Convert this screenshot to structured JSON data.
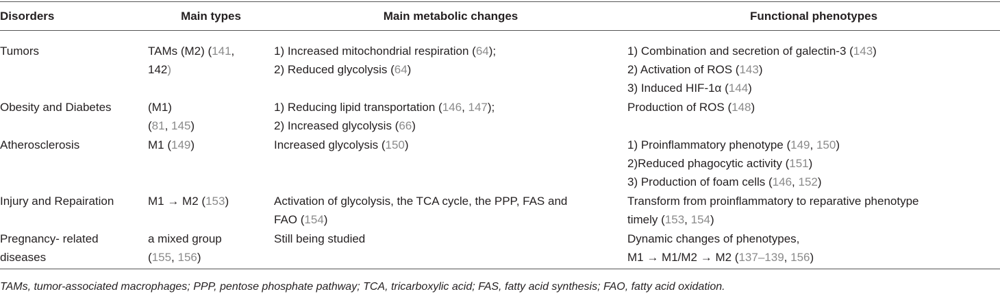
{
  "table": {
    "header": [
      "Disorders",
      "Main types",
      "Main metabolic changes",
      "Functional phenotypes"
    ],
    "rows": [
      [
        [
          [
            "Tumors"
          ]
        ],
        [
          [
            "TAMs (M2) (",
            "141",
            ", "
          ],
          [
            "142",
            ")"
          ]
        ],
        [
          [
            "1) Increased mitochondrial respiration (",
            "64",
            ");"
          ],
          [
            "2) Reduced glycolysis (",
            "64",
            ")"
          ]
        ],
        [
          [
            "1) Combination and secretion of galectin-3 (",
            "143",
            ")"
          ],
          [
            "2) Activation of ROS (",
            "143",
            ")"
          ],
          [
            "3) Induced HIF-1α (",
            "144",
            ")"
          ]
        ]
      ],
      [
        [
          [
            "Obesity and Diabetes"
          ]
        ],
        [
          [
            "(M1)"
          ],
          [
            "(",
            "81",
            ", ",
            "145",
            ")"
          ]
        ],
        [
          [
            "1) Reducing lipid transportation (",
            "146",
            ", ",
            "147",
            ");"
          ],
          [
            "2) Increased glycolysis (",
            "66",
            ")"
          ]
        ],
        [
          [
            "Production of ROS (",
            "148",
            ")"
          ]
        ]
      ],
      [
        [
          [
            "Atherosclerosis"
          ]
        ],
        [
          [
            "M1 (",
            "149",
            ")"
          ]
        ],
        [
          [
            "Increased glycolysis (",
            "150",
            ")"
          ]
        ],
        [
          [
            "1) Proinflammatory phenotype (",
            "149",
            ", ",
            "150",
            ")"
          ],
          [
            "2)Reduced phagocytic activity (",
            "151",
            ")"
          ],
          [
            "3) Production of foam cells (",
            "146",
            ", ",
            "152",
            ")"
          ]
        ]
      ],
      [
        [
          [
            "Injury and Repairation"
          ]
        ],
        [
          [
            "M1 → M2 (",
            "153",
            ")"
          ]
        ],
        [
          [
            "Activation of glycolysis, the TCA cycle, the PPP, FAS and"
          ],
          [
            "FAO (",
            "154",
            ")"
          ]
        ],
        [
          [
            "Transform from proinflammatory to reparative phenotype"
          ],
          [
            "timely (",
            "153",
            ", ",
            "154",
            ")"
          ]
        ]
      ],
      [
        [
          [
            "Pregnancy- related"
          ],
          [
            "diseases"
          ]
        ],
        [
          [
            "a mixed group"
          ],
          [
            "(",
            "155",
            ", ",
            "156",
            ")"
          ]
        ],
        [
          [
            "Still being studied"
          ]
        ],
        [
          [
            "Dynamic changes of phenotypes,"
          ],
          [
            "M1 → M1/M2 → M2 (",
            "137–139",
            ", ",
            "156",
            ")"
          ]
        ]
      ]
    ],
    "footnote": "TAMs, tumor-associated macrophages; PPP, pentose phosphate pathway; TCA, tricarboxylic acid; FAS, fatty acid synthesis; FAO, fatty acid oxidation."
  }
}
